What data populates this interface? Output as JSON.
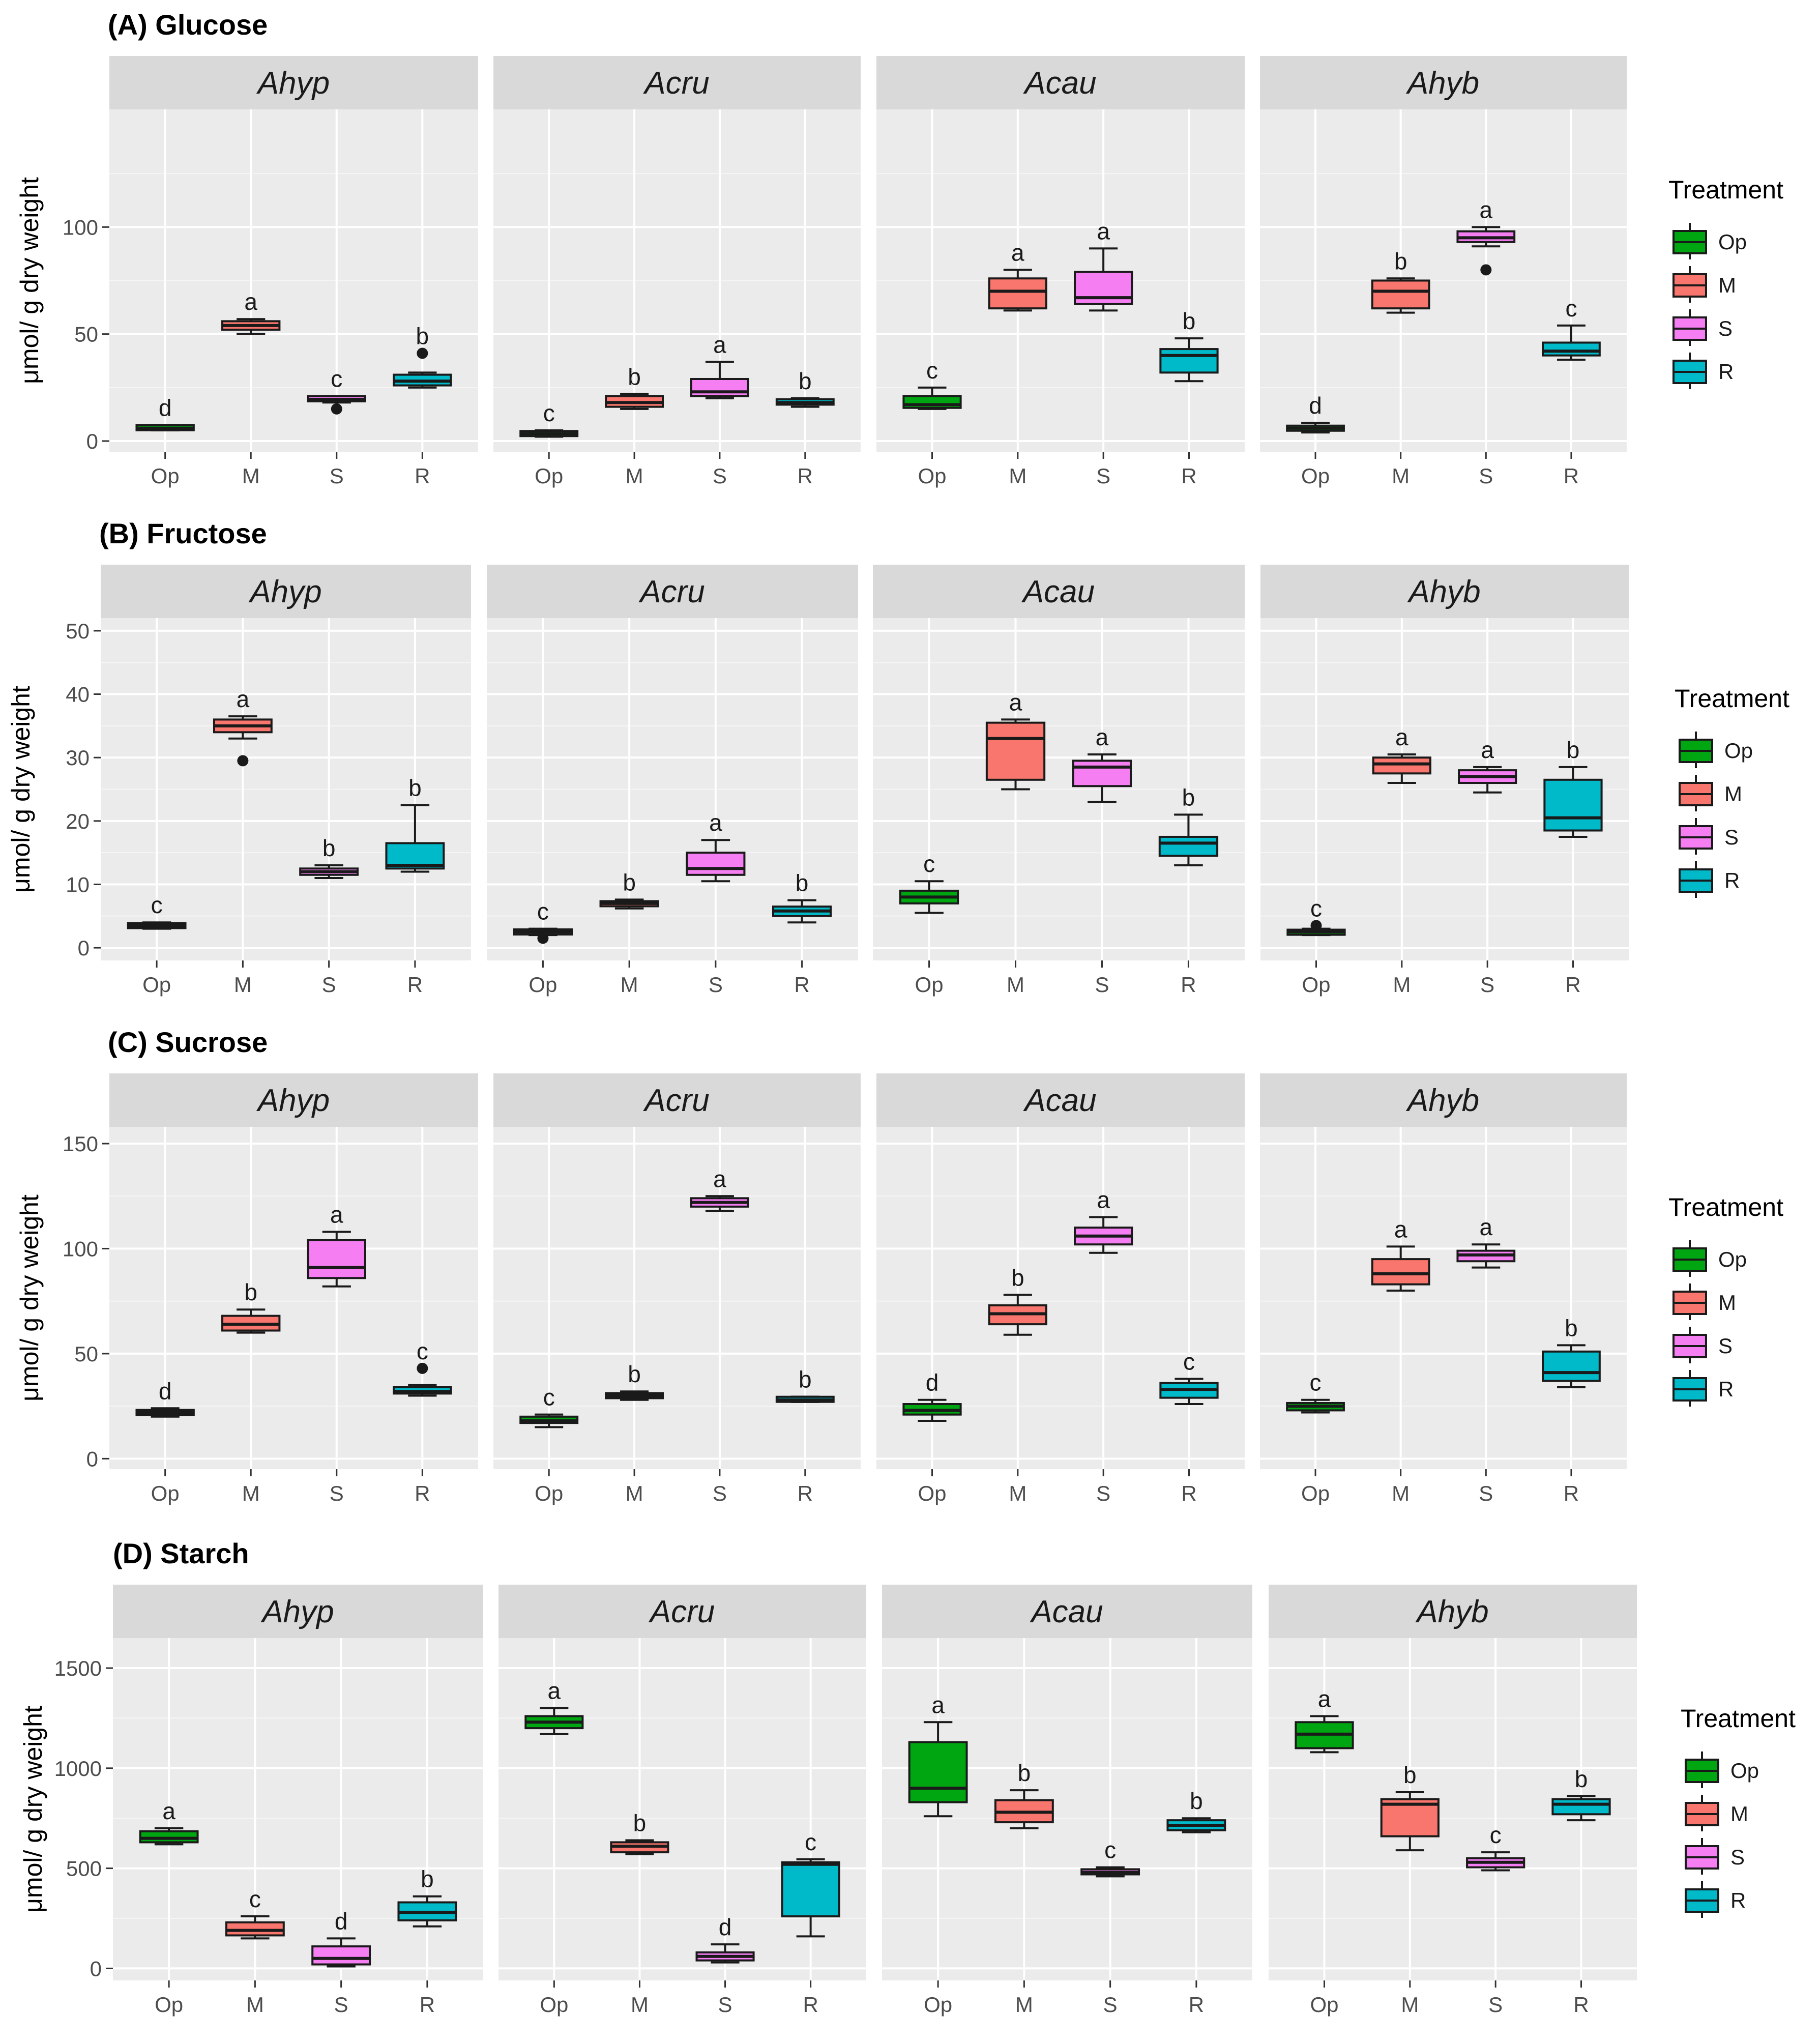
{
  "colors": {
    "Op": "#00a611",
    "M": "#f8766d",
    "S": "#f57ef3",
    "R": "#00b9c9",
    "panel_bg": "#ebebeb",
    "strip_bg": "#d9d9d9",
    "grid": "#ffffff"
  },
  "treatments": [
    "Op",
    "M",
    "S",
    "R"
  ],
  "species": [
    "Ahyp",
    "Acru",
    "Acau",
    "Ahyb"
  ],
  "legend": {
    "title": "Treatment",
    "items": [
      "Op",
      "M",
      "S",
      "R"
    ]
  },
  "chart_data": [
    {
      "type": "boxplot",
      "title": "(A) Glucose",
      "ylabel": "μmol/ g dry weight",
      "ylim": [
        -5,
        155
      ],
      "yticks": [
        0,
        50,
        100
      ],
      "panels": [
        {
          "strip": "Ahyp",
          "boxes": [
            {
              "x": "Op",
              "min": 5,
              "q1": 5.5,
              "median": 6,
              "q3": 7,
              "max": 7.5,
              "outliers": [],
              "letter": "d"
            },
            {
              "x": "M",
              "min": 50,
              "q1": 52,
              "median": 54,
              "q3": 56,
              "max": 57,
              "outliers": [],
              "letter": "a"
            },
            {
              "x": "S",
              "min": 18,
              "q1": 19,
              "median": 19.5,
              "q3": 20.5,
              "max": 21,
              "outliers": [
                15
              ],
              "letter": "c"
            },
            {
              "x": "R",
              "min": 25,
              "q1": 26,
              "median": 28,
              "q3": 31,
              "max": 32,
              "outliers": [
                41
              ],
              "letter": "b"
            }
          ]
        },
        {
          "strip": "Acru",
          "boxes": [
            {
              "x": "Op",
              "min": 2,
              "q1": 3,
              "median": 3.5,
              "q3": 4,
              "max": 5,
              "outliers": [],
              "letter": "c"
            },
            {
              "x": "M",
              "min": 15,
              "q1": 16,
              "median": 18,
              "q3": 21,
              "max": 22,
              "outliers": [],
              "letter": "b"
            },
            {
              "x": "S",
              "min": 20,
              "q1": 21,
              "median": 23,
              "q3": 29,
              "max": 37,
              "outliers": [],
              "letter": "a"
            },
            {
              "x": "R",
              "min": 16,
              "q1": 17,
              "median": 18,
              "q3": 19.5,
              "max": 20,
              "outliers": [],
              "letter": "b"
            }
          ]
        },
        {
          "strip": "Acau",
          "boxes": [
            {
              "x": "Op",
              "min": 15,
              "q1": 15.5,
              "median": 17,
              "q3": 21,
              "max": 25,
              "outliers": [],
              "letter": "c"
            },
            {
              "x": "M",
              "min": 61,
              "q1": 62,
              "median": 70,
              "q3": 76,
              "max": 80,
              "outliers": [],
              "letter": "a"
            },
            {
              "x": "S",
              "min": 61,
              "q1": 64,
              "median": 67,
              "q3": 79,
              "max": 90,
              "outliers": [],
              "letter": "a"
            },
            {
              "x": "R",
              "min": 28,
              "q1": 32,
              "median": 40,
              "q3": 43,
              "max": 48,
              "outliers": [],
              "letter": "b"
            }
          ]
        },
        {
          "strip": "Ahyb",
          "boxes": [
            {
              "x": "Op",
              "min": 4,
              "q1": 5,
              "median": 6,
              "q3": 7,
              "max": 8.5,
              "outliers": [],
              "letter": "d"
            },
            {
              "x": "M",
              "min": 60,
              "q1": 62,
              "median": 70,
              "q3": 75,
              "max": 76,
              "outliers": [],
              "letter": "b"
            },
            {
              "x": "S",
              "min": 91,
              "q1": 93,
              "median": 95,
              "q3": 98,
              "max": 100,
              "outliers": [
                80
              ],
              "letter": "a"
            },
            {
              "x": "R",
              "min": 38,
              "q1": 40,
              "median": 42,
              "q3": 46,
              "max": 54,
              "outliers": [],
              "letter": "c"
            }
          ]
        }
      ]
    },
    {
      "type": "boxplot",
      "title": "(B) Fructose",
      "ylabel": "μmol/ g dry weight",
      "ylim": [
        -2,
        52
      ],
      "yticks": [
        0,
        10,
        20,
        30,
        40,
        50
      ],
      "panels": [
        {
          "strip": "Ahyp",
          "boxes": [
            {
              "x": "Op",
              "min": 3,
              "q1": 3.2,
              "median": 3.5,
              "q3": 3.8,
              "max": 4,
              "outliers": [],
              "letter": "c"
            },
            {
              "x": "M",
              "min": 33,
              "q1": 34,
              "median": 35,
              "q3": 36,
              "max": 36.5,
              "outliers": [
                29.5
              ],
              "letter": "a"
            },
            {
              "x": "S",
              "min": 11,
              "q1": 11.5,
              "median": 12,
              "q3": 12.5,
              "max": 13,
              "outliers": [],
              "letter": "b"
            },
            {
              "x": "R",
              "min": 12,
              "q1": 12.5,
              "median": 13,
              "q3": 16.5,
              "max": 22.5,
              "outliers": [],
              "letter": "b"
            }
          ]
        },
        {
          "strip": "Acru",
          "boxes": [
            {
              "x": "Op",
              "min": 2,
              "q1": 2.2,
              "median": 2.5,
              "q3": 2.8,
              "max": 3,
              "outliers": [
                1.5
              ],
              "letter": "c"
            },
            {
              "x": "M",
              "min": 6.2,
              "q1": 6.6,
              "median": 7,
              "q3": 7.3,
              "max": 7.6,
              "outliers": [],
              "letter": "b"
            },
            {
              "x": "S",
              "min": 10.5,
              "q1": 11.5,
              "median": 12.5,
              "q3": 15,
              "max": 17,
              "outliers": [],
              "letter": "a"
            },
            {
              "x": "R",
              "min": 4,
              "q1": 5,
              "median": 5.8,
              "q3": 6.5,
              "max": 7.5,
              "outliers": [],
              "letter": "b"
            }
          ]
        },
        {
          "strip": "Acau",
          "boxes": [
            {
              "x": "Op",
              "min": 5.5,
              "q1": 7,
              "median": 8,
              "q3": 9,
              "max": 10.5,
              "outliers": [],
              "letter": "c"
            },
            {
              "x": "M",
              "min": 25,
              "q1": 26.5,
              "median": 33,
              "q3": 35.5,
              "max": 36,
              "outliers": [],
              "letter": "a"
            },
            {
              "x": "S",
              "min": 23,
              "q1": 25.5,
              "median": 28.5,
              "q3": 29.5,
              "max": 30.5,
              "outliers": [],
              "letter": "a"
            },
            {
              "x": "R",
              "min": 13,
              "q1": 14.5,
              "median": 16.5,
              "q3": 17.5,
              "max": 21,
              "outliers": [],
              "letter": "b"
            }
          ]
        },
        {
          "strip": "Ahyb",
          "boxes": [
            {
              "x": "Op",
              "min": 2,
              "q1": 2.2,
              "median": 2.5,
              "q3": 2.7,
              "max": 3,
              "outliers": [
                3.5
              ],
              "letter": "c"
            },
            {
              "x": "M",
              "min": 26,
              "q1": 27.5,
              "median": 29,
              "q3": 30,
              "max": 30.5,
              "outliers": [],
              "letter": "a"
            },
            {
              "x": "S",
              "min": 24.5,
              "q1": 26,
              "median": 27,
              "q3": 28,
              "max": 28.5,
              "outliers": [],
              "letter": "a"
            },
            {
              "x": "R",
              "min": 17.5,
              "q1": 18.5,
              "median": 20.5,
              "q3": 26.5,
              "max": 28.5,
              "outliers": [],
              "letter": "b"
            }
          ]
        }
      ]
    },
    {
      "type": "boxplot",
      "title": "(C) Sucrose",
      "ylabel": "μmol/ g dry weight",
      "ylim": [
        -5,
        158
      ],
      "yticks": [
        0,
        50,
        100,
        150
      ],
      "panels": [
        {
          "strip": "Ahyp",
          "boxes": [
            {
              "x": "Op",
              "min": 20,
              "q1": 21,
              "median": 22,
              "q3": 23,
              "max": 24,
              "outliers": [],
              "letter": "d"
            },
            {
              "x": "M",
              "min": 60,
              "q1": 61,
              "median": 64,
              "q3": 68,
              "max": 71,
              "outliers": [],
              "letter": "b"
            },
            {
              "x": "S",
              "min": 82,
              "q1": 86,
              "median": 91,
              "q3": 104,
              "max": 108,
              "outliers": [],
              "letter": "a"
            },
            {
              "x": "R",
              "min": 30,
              "q1": 31,
              "median": 32,
              "q3": 34,
              "max": 35,
              "outliers": [
                43
              ],
              "letter": "c"
            }
          ]
        },
        {
          "strip": "Acru",
          "boxes": [
            {
              "x": "Op",
              "min": 15,
              "q1": 17,
              "median": 18,
              "q3": 20,
              "max": 21,
              "outliers": [],
              "letter": "c"
            },
            {
              "x": "M",
              "min": 28,
              "q1": 29,
              "median": 30,
              "q3": 31,
              "max": 32,
              "outliers": [],
              "letter": "b"
            },
            {
              "x": "S",
              "min": 118,
              "q1": 120,
              "median": 122,
              "q3": 124,
              "max": 125,
              "outliers": [],
              "letter": "a"
            },
            {
              "x": "R",
              "min": 27,
              "q1": 27.5,
              "median": 28,
              "q3": 29,
              "max": 29.5,
              "outliers": [],
              "letter": "b"
            }
          ]
        },
        {
          "strip": "Acau",
          "boxes": [
            {
              "x": "Op",
              "min": 18,
              "q1": 21,
              "median": 23,
              "q3": 26,
              "max": 28,
              "outliers": [],
              "letter": "d"
            },
            {
              "x": "M",
              "min": 59,
              "q1": 64,
              "median": 69,
              "q3": 73,
              "max": 78,
              "outliers": [],
              "letter": "b"
            },
            {
              "x": "S",
              "min": 98,
              "q1": 102,
              "median": 106,
              "q3": 110,
              "max": 115,
              "outliers": [],
              "letter": "a"
            },
            {
              "x": "R",
              "min": 26,
              "q1": 29,
              "median": 33,
              "q3": 36,
              "max": 38,
              "outliers": [],
              "letter": "c"
            }
          ]
        },
        {
          "strip": "Ahyb",
          "boxes": [
            {
              "x": "Op",
              "min": 22,
              "q1": 23,
              "median": 25,
              "q3": 26.5,
              "max": 28,
              "outliers": [],
              "letter": "c"
            },
            {
              "x": "M",
              "min": 80,
              "q1": 83,
              "median": 88,
              "q3": 95,
              "max": 101,
              "outliers": [],
              "letter": "a"
            },
            {
              "x": "S",
              "min": 91,
              "q1": 94,
              "median": 97,
              "q3": 99,
              "max": 102,
              "outliers": [],
              "letter": "a"
            },
            {
              "x": "R",
              "min": 34,
              "q1": 37,
              "median": 41,
              "q3": 51,
              "max": 54,
              "outliers": [],
              "letter": "b"
            }
          ]
        }
      ]
    },
    {
      "type": "boxplot",
      "title": "(D) Starch",
      "ylabel": "μmol/ g dry weight",
      "ylim": [
        -60,
        1650
      ],
      "yticks": [
        0,
        500,
        1000,
        1500
      ],
      "panels": [
        {
          "strip": "Ahyp",
          "boxes": [
            {
              "x": "Op",
              "min": 620,
              "q1": 630,
              "median": 650,
              "q3": 685,
              "max": 700,
              "outliers": [],
              "letter": "a"
            },
            {
              "x": "M",
              "min": 150,
              "q1": 165,
              "median": 190,
              "q3": 230,
              "max": 260,
              "outliers": [],
              "letter": "c"
            },
            {
              "x": "S",
              "min": 10,
              "q1": 20,
              "median": 50,
              "q3": 110,
              "max": 150,
              "outliers": [],
              "letter": "d"
            },
            {
              "x": "R",
              "min": 210,
              "q1": 240,
              "median": 280,
              "q3": 330,
              "max": 360,
              "outliers": [],
              "letter": "b"
            }
          ]
        },
        {
          "strip": "Acru",
          "boxes": [
            {
              "x": "Op",
              "min": 1170,
              "q1": 1200,
              "median": 1230,
              "q3": 1260,
              "max": 1300,
              "outliers": [],
              "letter": "a"
            },
            {
              "x": "M",
              "min": 570,
              "q1": 580,
              "median": 610,
              "q3": 630,
              "max": 640,
              "outliers": [],
              "letter": "b"
            },
            {
              "x": "S",
              "min": 30,
              "q1": 40,
              "median": 60,
              "q3": 80,
              "max": 120,
              "outliers": [],
              "letter": "d"
            },
            {
              "x": "R",
              "min": 160,
              "q1": 260,
              "median": 520,
              "q3": 530,
              "max": 545,
              "outliers": [],
              "letter": "c"
            }
          ]
        },
        {
          "strip": "Acau",
          "boxes": [
            {
              "x": "Op",
              "min": 760,
              "q1": 830,
              "median": 900,
              "q3": 1130,
              "max": 1230,
              "outliers": [],
              "letter": "a"
            },
            {
              "x": "M",
              "min": 700,
              "q1": 730,
              "median": 780,
              "q3": 840,
              "max": 890,
              "outliers": [],
              "letter": "b"
            },
            {
              "x": "S",
              "min": 460,
              "q1": 470,
              "median": 480,
              "q3": 495,
              "max": 505,
              "outliers": [],
              "letter": "c"
            },
            {
              "x": "R",
              "min": 680,
              "q1": 690,
              "median": 715,
              "q3": 740,
              "max": 750,
              "outliers": [],
              "letter": "b"
            }
          ]
        },
        {
          "strip": "Ahyb",
          "boxes": [
            {
              "x": "Op",
              "min": 1080,
              "q1": 1100,
              "median": 1170,
              "q3": 1230,
              "max": 1260,
              "outliers": [],
              "letter": "a"
            },
            {
              "x": "M",
              "min": 590,
              "q1": 660,
              "median": 820,
              "q3": 845,
              "max": 880,
              "outliers": [],
              "letter": "b"
            },
            {
              "x": "S",
              "min": 490,
              "q1": 505,
              "median": 530,
              "q3": 550,
              "max": 580,
              "outliers": [],
              "letter": "c"
            },
            {
              "x": "R",
              "min": 740,
              "q1": 770,
              "median": 820,
              "q3": 845,
              "max": 860,
              "outliers": [],
              "letter": "b"
            }
          ]
        }
      ]
    }
  ]
}
